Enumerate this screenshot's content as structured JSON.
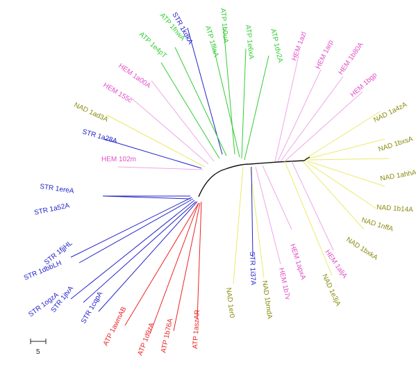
{
  "colors": {
    "ATP_green": "#33cc33",
    "ATP_red": "#ee2222",
    "STR": "#2222cc",
    "HEM": "#e24fc8",
    "NAD": "#8a8a10",
    "HEM_branch": "#f0a6e6",
    "NAD_branch": "#eaea6a",
    "backbone": "#111111"
  },
  "leaves": [
    {
      "label": "STR 1kdkA",
      "group": "STR"
    },
    {
      "label": "ATP 1b0uA",
      "group": "ATP_green"
    },
    {
      "label": "ATP 1fnwA",
      "group": "ATP_green"
    },
    {
      "label": "ATP 1fllaA",
      "group": "ATP_green"
    },
    {
      "label": "ATP 1e6xA",
      "group": "ATP_green"
    },
    {
      "label": "ATP 1dv2A",
      "group": "ATP_green"
    },
    {
      "label": "ATP 1e4pT",
      "group": "ATP_green"
    },
    {
      "label": "HEM 1a00A",
      "group": "HEM"
    },
    {
      "label": "HEM 155c",
      "group": "HEM"
    },
    {
      "label": "NAD 1ad3A",
      "group": "NAD"
    },
    {
      "label": "STR 1a28A",
      "group": "STR"
    },
    {
      "label": "HEM 102m",
      "group": "HEM"
    },
    {
      "label": "STR 1ereA",
      "group": "STR"
    },
    {
      "label": "STR 1a52A",
      "group": "STR"
    },
    {
      "label": "STR 1dbbLH",
      "group": "STR"
    },
    {
      "label": "STR 1fjjHL",
      "group": "STR"
    },
    {
      "label": "STR 1ogzA",
      "group": "STR"
    },
    {
      "label": "STR 1jtvA",
      "group": "STR"
    },
    {
      "label": "STR 1cqpA",
      "group": "STR"
    },
    {
      "label": "ATP 1awmAB",
      "group": "ATP_red"
    },
    {
      "label": "ATP 1d9zA",
      "group": "ATP_red"
    },
    {
      "label": "ATP 1b76A",
      "group": "ATP_red"
    },
    {
      "label": "ATP 1aszAR",
      "group": "ATP_red"
    },
    {
      "label": "HEM 1azl",
      "group": "HEM"
    },
    {
      "label": "HEM 1arp",
      "group": "HEM"
    },
    {
      "label": "HEM 1b80A",
      "group": "HEM"
    },
    {
      "label": "HEM 1bgp",
      "group": "HEM"
    },
    {
      "label": "NAD 1a4zA",
      "group": "NAD"
    },
    {
      "label": "NAD 1bxsA",
      "group": "NAD"
    },
    {
      "label": "NAD 1ahhA",
      "group": "NAD"
    },
    {
      "label": "NAD 1b14A",
      "group": "NAD"
    },
    {
      "label": "NAD 1nffA",
      "group": "NAD"
    },
    {
      "label": "NAD 1bxkA",
      "group": "NAD"
    },
    {
      "label": "HEM 1aljA",
      "group": "HEM"
    },
    {
      "label": "NAD 1e3jA",
      "group": "NAD"
    },
    {
      "label": "HEM 1apxA",
      "group": "HEM"
    },
    {
      "label": "HEM 1b7v",
      "group": "HEM"
    },
    {
      "label": "NAD 1bmdA",
      "group": "NAD"
    },
    {
      "label": "STR 1i37A",
      "group": "STR"
    },
    {
      "label": "NAD 1er0",
      "group": "NAD"
    }
  ],
  "scale_bar": {
    "label": "5"
  }
}
